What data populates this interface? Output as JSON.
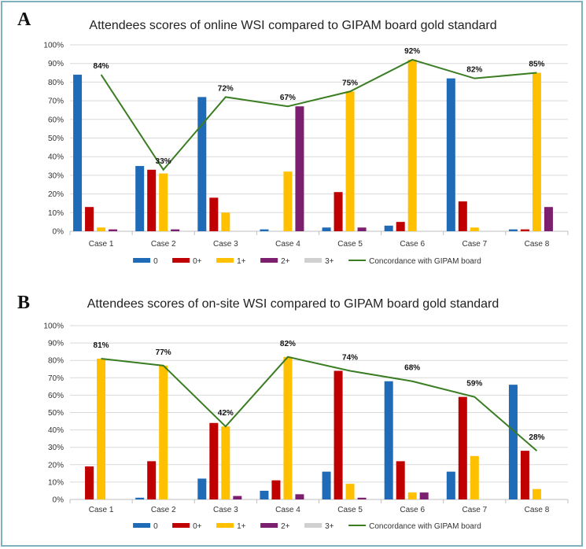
{
  "figure": {
    "panels": [
      "A",
      "B"
    ]
  },
  "chart_data": [
    {
      "panel": "A",
      "type": "bar",
      "title": "Attendees scores of online WSI compared to GIPAM board gold standard",
      "xlabel": "",
      "ylabel": "",
      "ylim": [
        0,
        100
      ],
      "yticks": [
        "0%",
        "10%",
        "20%",
        "30%",
        "40%",
        "50%",
        "60%",
        "70%",
        "80%",
        "90%",
        "100%"
      ],
      "grid": true,
      "legend_position": "bottom",
      "categories": [
        "Case 1",
        "Case 2",
        "Case 3",
        "Case 4",
        "Case 5",
        "Case 6",
        "Case 7",
        "Case 8"
      ],
      "series": [
        {
          "name": "0",
          "kind": "bar",
          "color": "#1f6bb8",
          "values": [
            84,
            35,
            72,
            1,
            2,
            3,
            82,
            1
          ]
        },
        {
          "name": "0+",
          "kind": "bar",
          "color": "#c00000",
          "values": [
            13,
            33,
            18,
            0,
            21,
            5,
            16,
            1
          ]
        },
        {
          "name": "1+",
          "kind": "bar",
          "color": "#ffc000",
          "values": [
            2,
            31,
            10,
            32,
            75,
            92,
            2,
            85
          ]
        },
        {
          "name": "2+",
          "kind": "bar",
          "color": "#7b1f6e",
          "values": [
            1,
            1,
            0,
            67,
            2,
            0,
            0,
            13
          ]
        },
        {
          "name": "3+",
          "kind": "bar",
          "color": "#d0d0d0",
          "values": [
            0,
            0,
            0,
            0,
            0,
            0,
            0,
            0
          ]
        },
        {
          "name": "Concordance with GIPAM board",
          "kind": "line",
          "color": "#3a7d23",
          "values": [
            84,
            33,
            72,
            67,
            75,
            92,
            82,
            85
          ],
          "labels": [
            "84%",
            "33%",
            "72%",
            "67%",
            "75%",
            "92%",
            "82%",
            "85%"
          ]
        }
      ]
    },
    {
      "panel": "B",
      "type": "bar",
      "title": "Attendees scores of on-site WSI compared to GIPAM board gold standard",
      "xlabel": "",
      "ylabel": "",
      "ylim": [
        0,
        100
      ],
      "yticks": [
        "0%",
        "10%",
        "20%",
        "30%",
        "40%",
        "50%",
        "60%",
        "70%",
        "80%",
        "90%",
        "100%"
      ],
      "grid": true,
      "legend_position": "bottom",
      "categories": [
        "Case 1",
        "Case 2",
        "Case 3",
        "Case 4",
        "Case 5",
        "Case 6",
        "Case 7",
        "Case 8"
      ],
      "series": [
        {
          "name": "0",
          "kind": "bar",
          "color": "#1f6bb8",
          "values": [
            0,
            1,
            12,
            5,
            16,
            68,
            16,
            66
          ]
        },
        {
          "name": "0+",
          "kind": "bar",
          "color": "#c00000",
          "values": [
            19,
            22,
            44,
            11,
            74,
            22,
            59,
            28
          ]
        },
        {
          "name": "1+",
          "kind": "bar",
          "color": "#ffc000",
          "values": [
            81,
            77,
            42,
            82,
            9,
            4,
            25,
            6
          ]
        },
        {
          "name": "2+",
          "kind": "bar",
          "color": "#7b1f6e",
          "values": [
            0,
            0,
            2,
            3,
            1,
            4,
            0,
            0
          ]
        },
        {
          "name": "3+",
          "kind": "bar",
          "color": "#d0d0d0",
          "values": [
            0,
            0,
            0,
            0,
            0,
            0,
            0,
            0
          ]
        },
        {
          "name": "Concordance with GIPAM board",
          "kind": "line",
          "color": "#3a7d23",
          "values": [
            81,
            77,
            42,
            82,
            74,
            68,
            59,
            28
          ],
          "labels": [
            "81%",
            "77%",
            "42%",
            "82%",
            "74%",
            "68%",
            "59%",
            "28%"
          ]
        }
      ]
    }
  ]
}
